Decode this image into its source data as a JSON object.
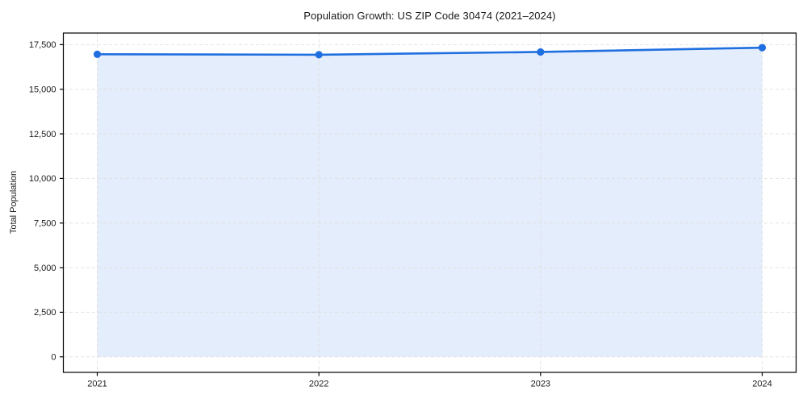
{
  "chart_data": {
    "type": "line",
    "title": "Population Growth: US ZIP Code 30474 (2021–2024)",
    "xlabel": "",
    "ylabel": "Total Population",
    "categories": [
      "2021",
      "2022",
      "2023",
      "2024"
    ],
    "series": [
      {
        "name": "Total Population",
        "values": [
          16960,
          16935,
          17090,
          17330
        ]
      }
    ],
    "yticks": [
      0,
      2500,
      5000,
      7500,
      10000,
      12500,
      15000,
      17500
    ],
    "ytick_labels": [
      "0",
      "2,500",
      "5,000",
      "7,500",
      "10,000",
      "12,500",
      "15,000",
      "17,500"
    ],
    "ylim": [
      -870,
      18150
    ],
    "x_margin": 0.153,
    "grid": true,
    "grid_style": "dashed",
    "legend": false,
    "area_fill": true,
    "area_baseline": 0,
    "colors": {
      "line": "#1f6fe0",
      "marker": "#1f6fe0",
      "fill": "#1f6fe0",
      "fill_opacity": 0.12,
      "grid": "#dcdcdc",
      "spine": "#000000",
      "tick_text": "#1a1a1a",
      "background": "#ffffff"
    }
  }
}
